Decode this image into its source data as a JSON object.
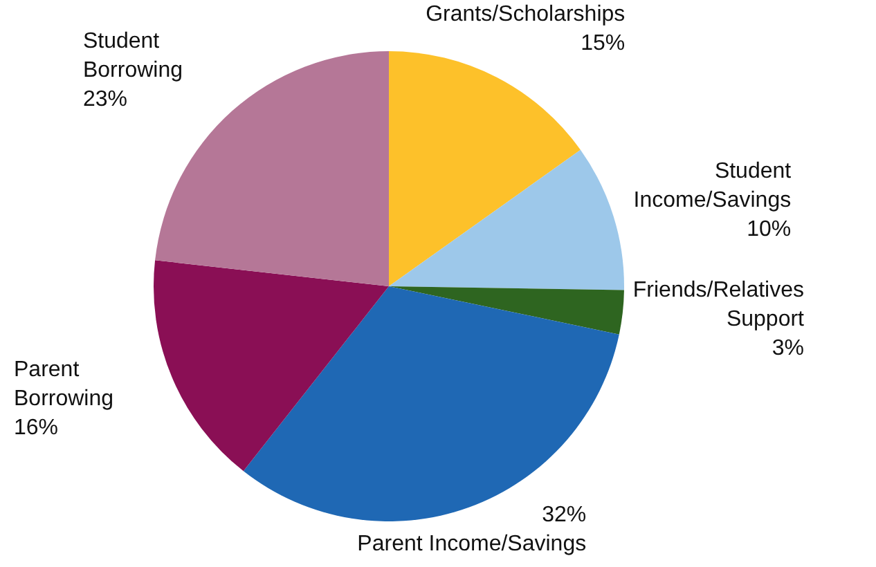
{
  "chart_data": {
    "type": "pie",
    "categories": [
      "Grants/Scholarships",
      "Student Income/Savings",
      "Friends/Relatives Support",
      "Parent Income/Savings",
      "Parent Borrowing",
      "Student Borrowing"
    ],
    "values": [
      15,
      10,
      3,
      32,
      16,
      23
    ],
    "colors": [
      "#fdc12a",
      "#9dc8ea",
      "#2e6520",
      "#1f68b4",
      "#8a0f55",
      "#b57797"
    ],
    "value_labels": [
      "15%",
      "10%",
      "3%",
      "32%",
      "16%",
      "23%"
    ]
  }
}
